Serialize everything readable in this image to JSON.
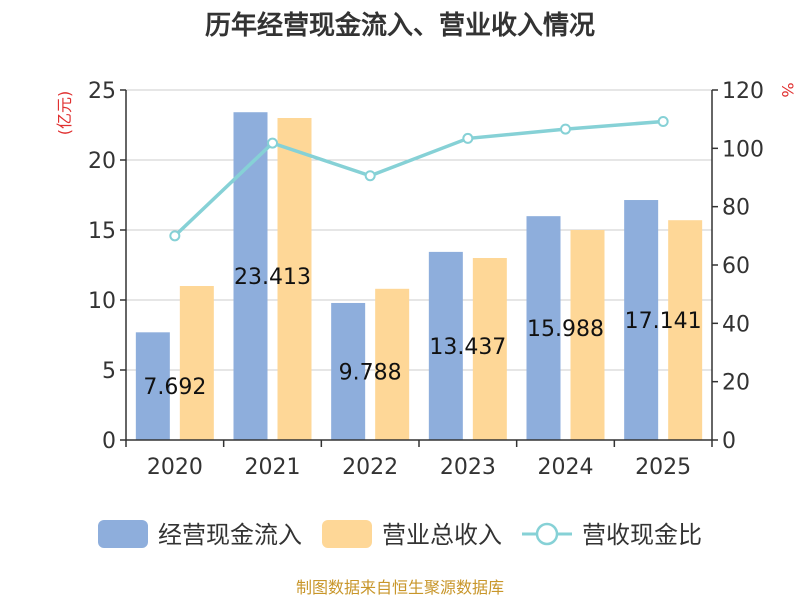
{
  "chart_data": {
    "type": "bar",
    "title": "历年经营现金流入、营业收入情况",
    "categories": [
      "2020",
      "2021",
      "2022",
      "2023",
      "2024",
      "2025"
    ],
    "series": [
      {
        "name": "经营现金流入",
        "type": "bar",
        "axis": "left",
        "color": "#8eaedc",
        "values": [
          7.692,
          23.413,
          9.788,
          13.437,
          15.988,
          17.141
        ]
      },
      {
        "name": "营业总收入",
        "type": "bar",
        "axis": "left",
        "color": "#fed797",
        "values": [
          11.0,
          23.0,
          10.8,
          13.0,
          15.0,
          15.7
        ]
      },
      {
        "name": "营收现金比",
        "type": "line",
        "axis": "right",
        "color": "#86d1d6",
        "values": [
          70,
          101.8,
          90.6,
          103.4,
          106.6,
          109.2
        ]
      }
    ],
    "data_labels": [
      "7.692",
      "23.413",
      "9.788",
      "13.437",
      "15.988",
      "17.141"
    ],
    "y_left": {
      "unit": "(亿元)",
      "ylim": [
        0,
        25
      ],
      "ticks": [
        "0",
        "5",
        "10",
        "15",
        "20",
        "25"
      ]
    },
    "y_right": {
      "unit": "%",
      "ylim": [
        0,
        120
      ],
      "ticks": [
        "0",
        "20",
        "40",
        "60",
        "80",
        "100",
        "120"
      ]
    },
    "grid": true,
    "legend_position": "bottom"
  },
  "source": "制图数据来自恒生聚源数据库"
}
